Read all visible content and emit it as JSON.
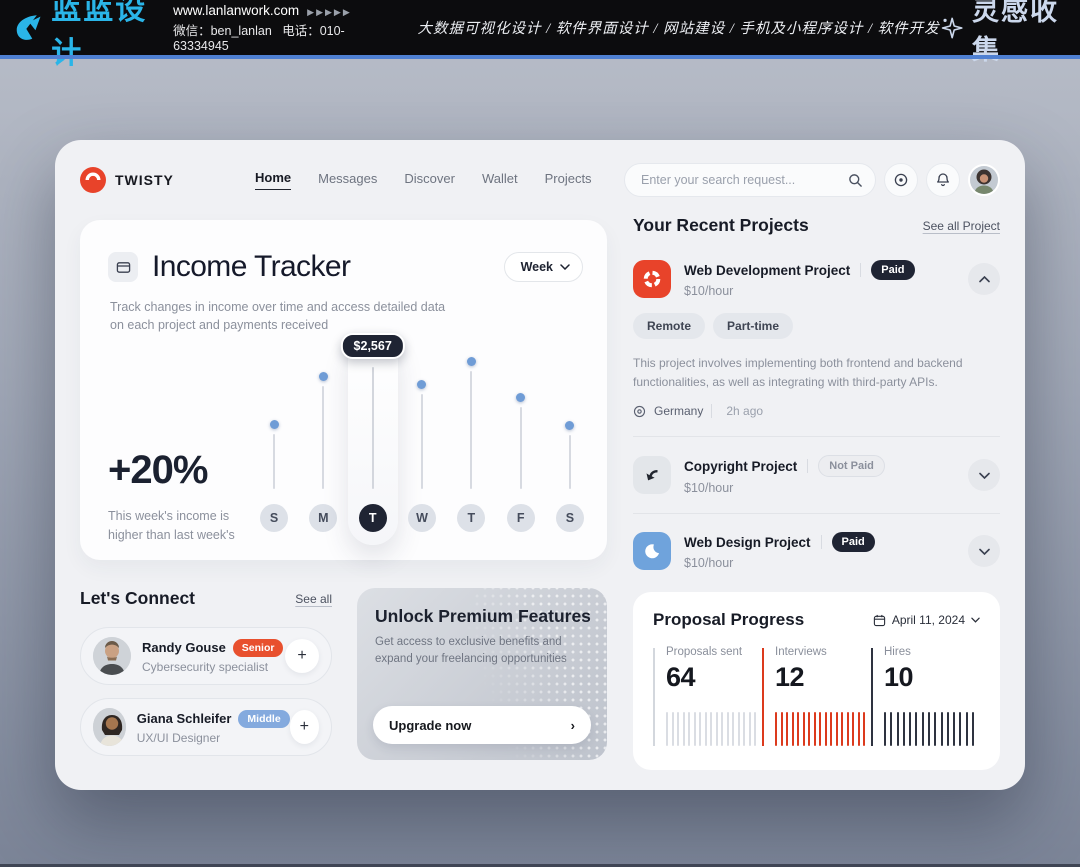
{
  "banner": {
    "logo_text": "蓝蓝设计",
    "website": "www.lanlanwork.com",
    "arrows": "▶▶▶▶▶",
    "wechat": "微信：ben_lanlan",
    "phone": "电话：010-63334945",
    "services": "大数据可视化设计 / 软件界面设计 / 网站建设 / 手机及小程序设计 / 软件开发",
    "collect_text": "灵感收集"
  },
  "header": {
    "brand": "TWISTY",
    "nav": [
      "Home",
      "Messages",
      "Discover",
      "Wallet",
      "Projects"
    ],
    "active_nav": "Home",
    "search_placeholder": "Enter your search request..."
  },
  "income_tracker": {
    "title": "Income Tracker",
    "subtitle": "Track changes in income over time and access detailed data on each project and payments received",
    "period": "Week",
    "change": "+20%",
    "change_note": "This week's income is higher than last week's"
  },
  "chart_data": [
    {
      "type": "bar",
      "subtype": "lollipop",
      "title": "Income Tracker – weekly income",
      "categories": [
        "S",
        "M",
        "T",
        "W",
        "T",
        "F",
        "S"
      ],
      "values": [
        1160,
        2170,
        2567,
        2000,
        2480,
        1730,
        1140
      ],
      "unit": "USD",
      "ymax": 2567,
      "highlight_index": 2,
      "highlight_label": "$2,567",
      "legend": false,
      "grid": false
    },
    {
      "type": "bar",
      "subtype": "ruler-stats",
      "title": "Proposal Progress",
      "date": "April 11, 2024",
      "sections": [
        {
          "label": "Proposals sent",
          "value": 64,
          "color": "#dadde3",
          "line_color": "#d3d7dd",
          "ticks": 17
        },
        {
          "label": "Interviews",
          "value": 12,
          "color": "#dc3a1d",
          "line_color": "#dc3a1d",
          "ticks": 17
        },
        {
          "label": "Hires",
          "value": 10,
          "color": "#2e3340",
          "line_color": "#2e3340",
          "ticks": 15
        }
      ]
    }
  ],
  "recent_projects": {
    "title": "Your Recent Projects",
    "see_all": "See all Project",
    "projects": [
      {
        "name": "Web Development Project",
        "rate": "$10/hour",
        "badge": "Paid",
        "tags": [
          "Remote",
          "Part-time"
        ],
        "description": "This project involves implementing both frontend and backend functionalities, as well as integrating with third-party APIs.",
        "location": "Germany",
        "time": "2h ago"
      },
      {
        "name": "Copyright Project",
        "rate": "$10/hour",
        "badge": "Not Paid"
      },
      {
        "name": "Web Design Project",
        "rate": "$10/hour",
        "badge": "Paid"
      }
    ]
  },
  "connect": {
    "title": "Let's Connect",
    "see_all": "See all",
    "people": [
      {
        "name": "Randy Gouse",
        "level": "Senior",
        "role": "Cybersecurity specialist"
      },
      {
        "name": "Giana Schleifer",
        "level": "Middle",
        "role": "UX/UI Designer"
      }
    ]
  },
  "premium": {
    "title": "Unlock Premium Features",
    "subtitle": "Get access to exclusive benefits and expand your freelancing opportunities",
    "button": "Upgrade now"
  },
  "proposal": {
    "title": "Proposal Progress",
    "date": "April 11, 2024"
  },
  "icons": {
    "plus": "+",
    "arrow_right": "›",
    "search-icon": "magnifier",
    "target-icon": "circle-dot",
    "bell-icon": "bell",
    "calendar-icon": "calendar",
    "location-icon": "pin",
    "card-icon": "credit-card",
    "sparkle-icon": "four-point-star"
  },
  "colors": {
    "banner_bg": "#0c0c0e",
    "banner_cyan": "#2ab5e8",
    "banner_blue_strip": "#4f80d2",
    "page_bg_top": "#b9bec9",
    "page_bg_bottom": "#7b8497",
    "card_bg": "#f0f1f4",
    "dark_navy": "#1f2433",
    "chart_dot_blue": "#6f9cd6",
    "accent_red": "#e8432a",
    "senior_badge": "#e8502e",
    "middle_badge": "#84aade",
    "web_design_blue": "#6fa3dc",
    "interviews_red": "#dc3a1d",
    "muted_text": "#8b909c"
  }
}
